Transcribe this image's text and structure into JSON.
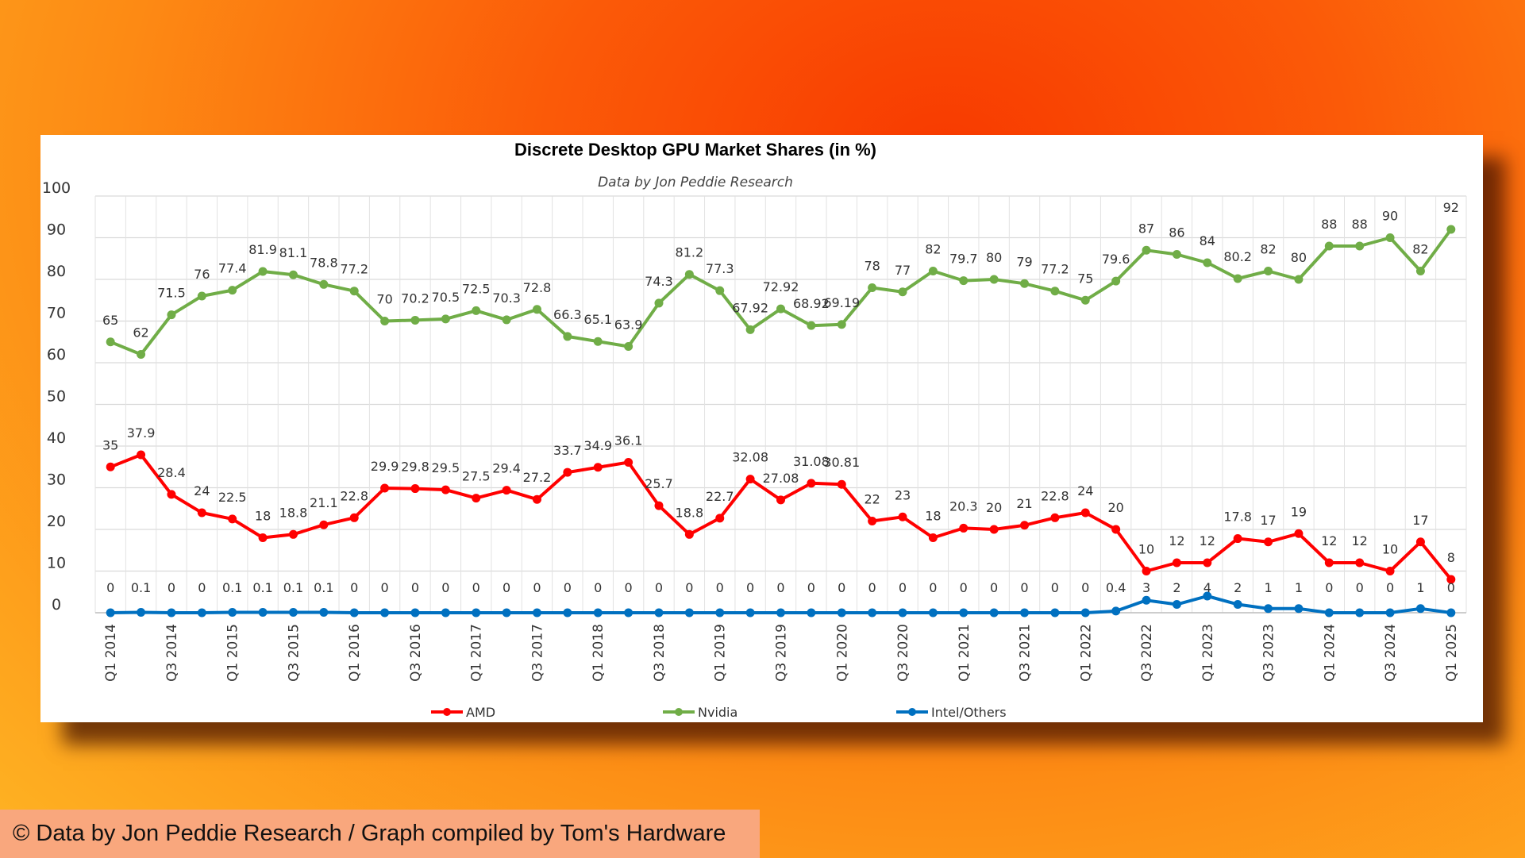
{
  "footer": "© Data by Jon Peddie Research / Graph compiled by Tom's Hardware",
  "chart_data": {
    "type": "line",
    "title": "Discrete Desktop GPU Market Shares (in %)",
    "subtitle": "Data by Jon Peddie Research",
    "ylim": [
      0,
      100
    ],
    "yticks": [
      0,
      10,
      20,
      30,
      40,
      50,
      60,
      70,
      80,
      90,
      100
    ],
    "grid": true,
    "legend_position": "bottom",
    "x": [
      "Q1 2014",
      "Q2 2014",
      "Q3 2014",
      "Q4 2014",
      "Q1 2015",
      "Q2 2015",
      "Q3 2015",
      "Q4 2015",
      "Q1 2016",
      "Q2 2016",
      "Q3 2016",
      "Q4 2016",
      "Q1 2017",
      "Q2 2017",
      "Q3 2017",
      "Q4 2017",
      "Q1 2018",
      "Q2 2018",
      "Q3 2018",
      "Q4 2018",
      "Q1 2019",
      "Q2 2019",
      "Q3 2019",
      "Q4 2019",
      "Q1 2020",
      "Q2 2020",
      "Q3 2020",
      "Q4 2020",
      "Q1 2021",
      "Q2 2021",
      "Q3 2021",
      "Q4 2021",
      "Q1 2022",
      "Q2 2022",
      "Q3 2022",
      "Q4 2022",
      "Q1 2023",
      "Q2 2023",
      "Q3 2023",
      "Q4 2023",
      "Q1 2024",
      "Q2 2024",
      "Q3 2024",
      "Q4 2024",
      "Q1 2025"
    ],
    "xtick_labels_shown": [
      "Q1 2014",
      "Q3 2014",
      "Q1 2015",
      "Q3 2015",
      "Q1 2016",
      "Q3 2016",
      "Q1 2017",
      "Q3 2017",
      "Q1 2018",
      "Q3 2018",
      "Q1 2019",
      "Q3 2019",
      "Q1 2020",
      "Q3 2020",
      "Q1 2021",
      "Q3 2021",
      "Q1 2022",
      "Q3 2022",
      "Q1 2023",
      "Q3 2023",
      "Q1 2024",
      "Q3 2024",
      "Q1 2025"
    ],
    "series": [
      {
        "name": "AMD",
        "color": "#ff0000",
        "labels_above": true,
        "values": [
          35,
          37.9,
          28.4,
          24,
          22.5,
          18,
          18.8,
          21.1,
          22.8,
          29.9,
          29.8,
          29.5,
          27.5,
          29.4,
          27.2,
          33.7,
          34.9,
          36.1,
          25.7,
          18.8,
          22.7,
          32.08,
          27.08,
          31.08,
          30.81,
          22,
          23,
          18,
          20.3,
          20,
          21,
          22.8,
          24,
          20,
          10,
          12,
          12,
          17.8,
          17,
          19,
          12,
          12,
          10,
          17,
          8
        ]
      },
      {
        "name": "Nvidia",
        "color": "#70ad47",
        "labels_above": true,
        "values": [
          65,
          62,
          71.5,
          76,
          77.4,
          81.9,
          81.1,
          78.8,
          77.2,
          70,
          70.2,
          70.5,
          72.5,
          70.3,
          72.8,
          66.3,
          65.1,
          63.9,
          74.3,
          81.2,
          77.3,
          67.92,
          72.92,
          68.92,
          69.19,
          78,
          77,
          82,
          79.7,
          80,
          79,
          77.2,
          75,
          79.6,
          87,
          86,
          84,
          80.2,
          82,
          80,
          88,
          88,
          90,
          82,
          92
        ]
      },
      {
        "name": "Intel/Others",
        "color": "#0070c0",
        "labels_above": false,
        "values": [
          0,
          0.1,
          0,
          0,
          0.1,
          0.1,
          0.1,
          0.1,
          0,
          0,
          0,
          0,
          0,
          0,
          0,
          0,
          0,
          0,
          0,
          0,
          0,
          0,
          0,
          0,
          0,
          0,
          0,
          0,
          0,
          0,
          0,
          0,
          0,
          0.4,
          3,
          2,
          4,
          2,
          1,
          1,
          0,
          0,
          0,
          1,
          0
        ]
      }
    ]
  }
}
